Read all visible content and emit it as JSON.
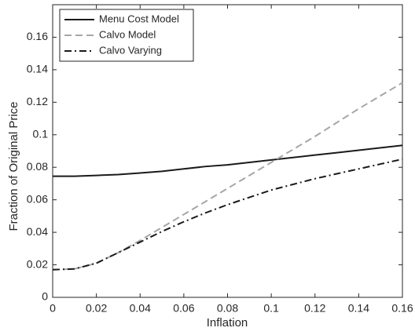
{
  "chart_data": {
    "type": "line",
    "xlabel": "Inflation",
    "ylabel": "Fraction of Original Price",
    "x": [
      0,
      0.01,
      0.02,
      0.03,
      0.04,
      0.05,
      0.06,
      0.07,
      0.08,
      0.09,
      0.1,
      0.11,
      0.12,
      0.13,
      0.14,
      0.15,
      0.16
    ],
    "series": [
      {
        "name": "Menu Cost Model",
        "color": "#1a1a1a",
        "dash": "solid",
        "values": [
          0.0745,
          0.0745,
          0.075,
          0.0755,
          0.0765,
          0.0775,
          0.079,
          0.0805,
          0.0815,
          0.083,
          0.0845,
          0.086,
          0.0875,
          0.089,
          0.0905,
          0.092,
          0.0935
        ]
      },
      {
        "name": "Calvo Model",
        "color": "#a6a6a6",
        "dash": "dashed",
        "values": [
          0.017,
          0.0175,
          0.021,
          0.0275,
          0.035,
          0.043,
          0.051,
          0.059,
          0.067,
          0.075,
          0.083,
          0.091,
          0.099,
          0.1075,
          0.116,
          0.124,
          0.132
        ]
      },
      {
        "name": "Calvo Varying",
        "color": "#1a1a1a",
        "dash": "dashdot",
        "values": [
          0.017,
          0.0175,
          0.021,
          0.0275,
          0.034,
          0.0405,
          0.0465,
          0.052,
          0.057,
          0.0615,
          0.066,
          0.0695,
          0.073,
          0.076,
          0.079,
          0.082,
          0.085
        ]
      }
    ],
    "xlim": [
      0,
      0.16
    ],
    "xticks": [
      0,
      0.02,
      0.04,
      0.06,
      0.08,
      0.1,
      0.12,
      0.14,
      0.16
    ],
    "ylim": [
      0,
      0.18
    ],
    "yticks": [
      0,
      0.02,
      0.04,
      0.06,
      0.08,
      0.1,
      0.12,
      0.14,
      0.16
    ],
    "legend": "upper-left"
  }
}
